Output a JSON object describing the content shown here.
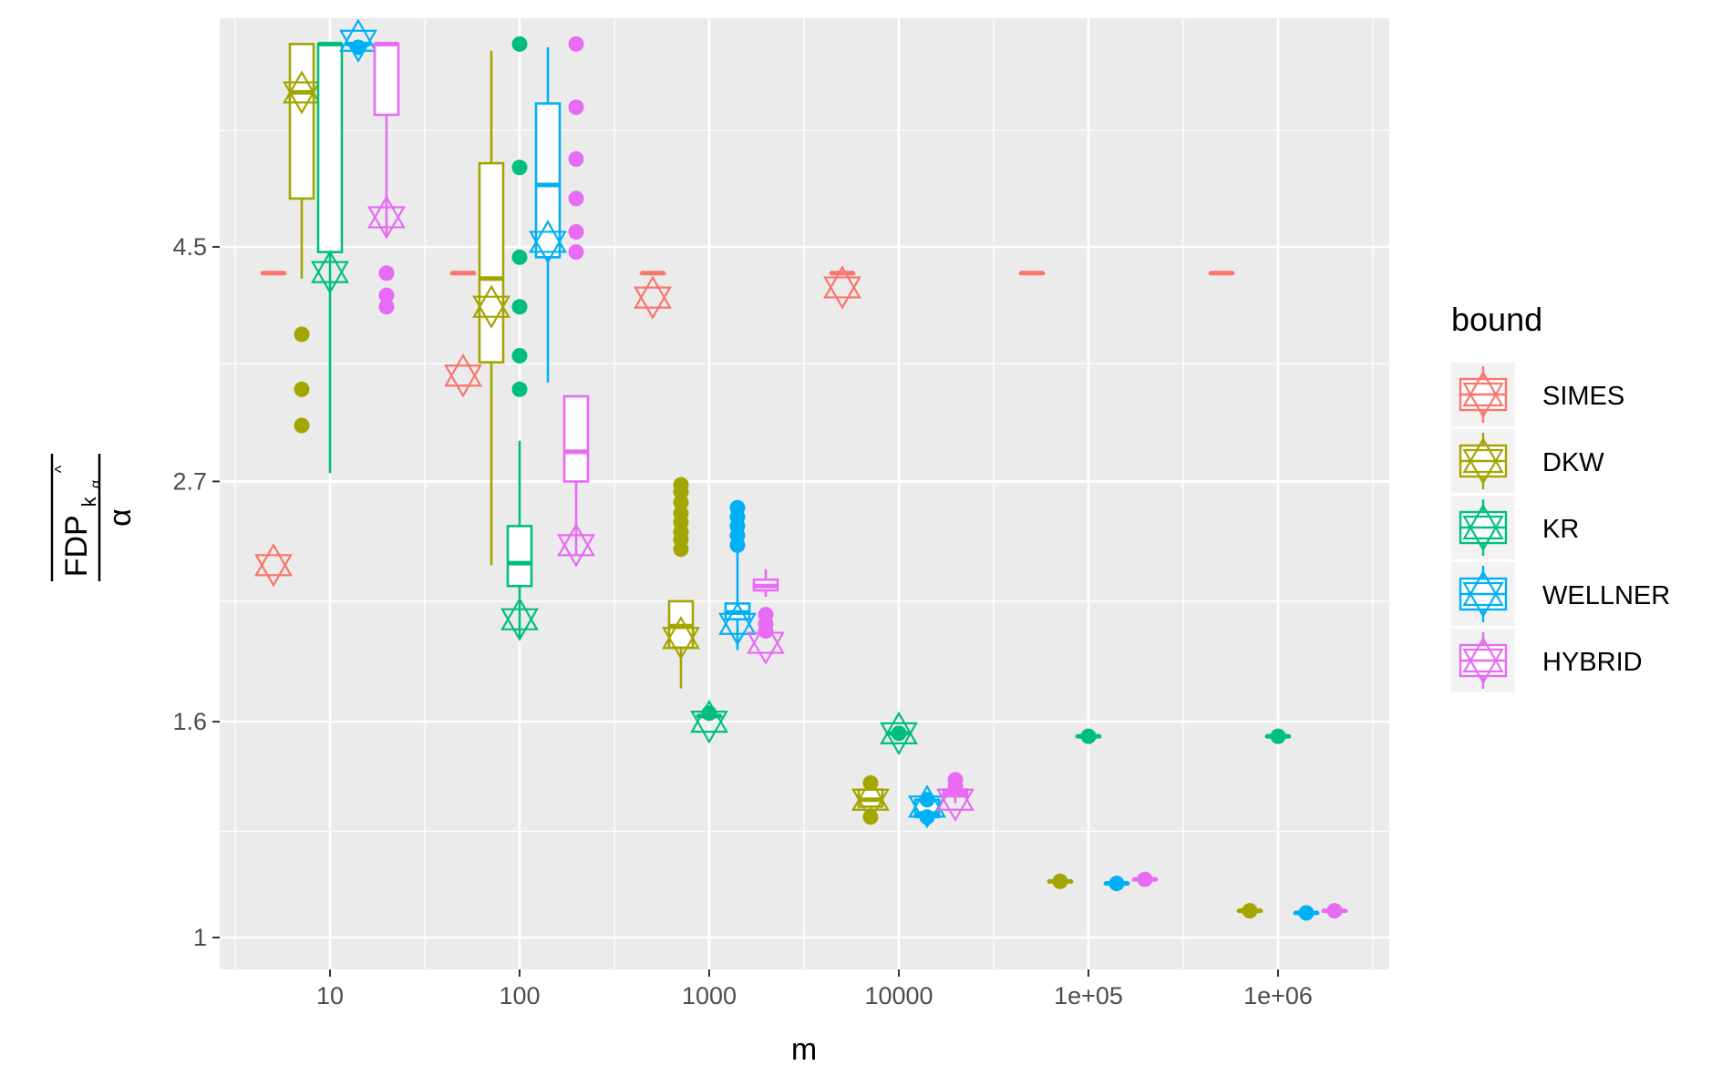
{
  "chart_data": {
    "type": "boxplot",
    "xlabel": "m",
    "ylabel_main": "FDP",
    "ylabel_sub": "k",
    "ylabel_subsub": "α",
    "ylabel_hat": "^",
    "ylabel_denominator": "α",
    "x_scale": "log10 (dodged by bound)",
    "y_scale": "log",
    "ylim": [
      0.93,
      7.8
    ],
    "x_ticks": [
      {
        "value": 10,
        "label": "10"
      },
      {
        "value": 100,
        "label": "100"
      },
      {
        "value": 1000,
        "label": "1000"
      },
      {
        "value": 10000,
        "label": "10000"
      },
      {
        "value": 100000,
        "label": "1e+05"
      },
      {
        "value": 1000000,
        "label": "1e+06"
      }
    ],
    "y_ticks": [
      {
        "value": 1,
        "label": "1"
      },
      {
        "value": 1.6,
        "label": "1.6"
      },
      {
        "value": 2.7,
        "label": "2.7"
      },
      {
        "value": 4.5,
        "label": "4.5"
      }
    ],
    "y_minor": [
      1.26,
      2.08,
      3.49,
      5.8
    ],
    "legend": {
      "title": "bound",
      "position": "right",
      "entries": [
        {
          "name": "SIMES",
          "color": "#F8766D"
        },
        {
          "name": "DKW",
          "color": "#A3A500"
        },
        {
          "name": "KR",
          "color": "#00BF7D"
        },
        {
          "name": "WELLNER",
          "color": "#00B0F6"
        },
        {
          "name": "HYBRID",
          "color": "#E76BF3"
        }
      ]
    },
    "series": [
      {
        "name": "SIMES",
        "color": "#F8766D",
        "groups": [
          {
            "m": 10,
            "box": [
              4.25,
              4.25,
              4.25,
              4.25,
              4.25
            ],
            "mean": 2.25,
            "outliers": []
          },
          {
            "m": 100,
            "box": [
              4.25,
              4.25,
              4.25,
              4.25,
              4.25
            ],
            "mean": 3.4,
            "outliers": []
          },
          {
            "m": 1000,
            "box": [
              4.25,
              4.25,
              4.25,
              4.25,
              4.25
            ],
            "mean": 4.03,
            "outliers": []
          },
          {
            "m": 10000,
            "box": [
              4.25,
              4.25,
              4.25,
              4.25,
              4.25
            ],
            "mean": 4.12,
            "outliers": []
          },
          {
            "m": 100000,
            "box": [
              4.25,
              4.25,
              4.25,
              4.25,
              4.25
            ],
            "mean": null,
            "outliers": []
          },
          {
            "m": 1000000,
            "box": [
              4.25,
              4.25,
              4.25,
              4.25,
              4.25
            ],
            "mean": null,
            "outliers": []
          }
        ]
      },
      {
        "name": "DKW",
        "color": "#A3A500",
        "groups": [
          {
            "m": 10,
            "box": [
              4.2,
              5.0,
              6.3,
              7.0,
              7.0
            ],
            "mean": 6.3,
            "outliers": [
              3.72,
              3.3,
              3.05
            ]
          },
          {
            "m": 100,
            "box": [
              2.25,
              3.5,
              4.2,
              5.4,
              6.9
            ],
            "mean": 3.95,
            "outliers": []
          },
          {
            "m": 1000,
            "box": [
              1.72,
              1.88,
              1.97,
              2.08,
              2.08
            ],
            "mean": 1.92,
            "outliers": [
              2.68,
              2.64,
              2.58,
              2.52,
              2.47,
              2.42,
              2.38,
              2.33
            ]
          },
          {
            "m": 10000,
            "box": [
              1.3,
              1.33,
              1.35,
              1.38,
              1.4
            ],
            "mean": 1.35,
            "outliers": [
              1.4,
              1.3
            ]
          },
          {
            "m": 100000,
            "box": [
              1.13,
              1.13,
              1.13,
              1.13,
              1.13
            ],
            "mean": null,
            "outliers": [
              1.13
            ]
          },
          {
            "m": 1000000,
            "box": [
              1.06,
              1.06,
              1.06,
              1.06,
              1.06
            ],
            "mean": null,
            "outliers": [
              1.06
            ]
          }
        ]
      },
      {
        "name": "KR",
        "color": "#00BF7D",
        "groups": [
          {
            "m": 10,
            "box": [
              2.75,
              4.45,
              7.0,
              7.0,
              7.0
            ],
            "mean": 4.26,
            "outliers": []
          },
          {
            "m": 100,
            "box": [
              1.92,
              2.15,
              2.26,
              2.45,
              2.95
            ],
            "mean": 2.0,
            "outliers": [
              7.0,
              5.35,
              4.4,
              3.95,
              3.55,
              3.3
            ]
          },
          {
            "m": 1000,
            "box": [
              1.62,
              1.62,
              1.62,
              1.62,
              1.62
            ],
            "mean": 1.6,
            "outliers": [
              1.63
            ]
          },
          {
            "m": 10000,
            "box": [
              1.56,
              1.56,
              1.56,
              1.56,
              1.56
            ],
            "mean": 1.56,
            "outliers": [
              1.56
            ]
          },
          {
            "m": 100000,
            "box": [
              1.55,
              1.55,
              1.55,
              1.55,
              1.55
            ],
            "mean": null,
            "outliers": [
              1.55
            ]
          },
          {
            "m": 1000000,
            "box": [
              1.55,
              1.55,
              1.55,
              1.55,
              1.55
            ],
            "mean": null,
            "outliers": [
              1.55
            ]
          }
        ]
      },
      {
        "name": "WELLNER",
        "color": "#00B0F6",
        "groups": [
          {
            "m": 10,
            "box": [
              7.0,
              7.0,
              7.0,
              7.0,
              7.0
            ],
            "mean": 7.05,
            "outliers": [
              6.95
            ]
          },
          {
            "m": 100,
            "box": [
              3.35,
              4.4,
              5.15,
              6.15,
              6.95
            ],
            "mean": 4.55,
            "outliers": []
          },
          {
            "m": 1000,
            "box": [
              1.87,
              2.0,
              2.03,
              2.07,
              2.33
            ],
            "mean": 1.98,
            "outliers": [
              2.55,
              2.5,
              2.45,
              2.4,
              2.35
            ]
          },
          {
            "m": 10000,
            "box": [
              1.3,
              1.3,
              1.31,
              1.35,
              1.35
            ],
            "mean": 1.33,
            "outliers": [
              1.35,
              1.3
            ]
          },
          {
            "m": 100000,
            "box": [
              1.125,
              1.125,
              1.125,
              1.125,
              1.125
            ],
            "mean": null,
            "outliers": [
              1.125
            ]
          },
          {
            "m": 1000000,
            "box": [
              1.055,
              1.055,
              1.055,
              1.055,
              1.055
            ],
            "mean": null,
            "outliers": [
              1.055
            ]
          }
        ]
      },
      {
        "name": "HYBRID",
        "color": "#E76BF3",
        "groups": [
          {
            "m": 10,
            "box": [
              4.6,
              6.0,
              7.0,
              7.0,
              7.0
            ],
            "mean": 4.8,
            "outliers": [
              4.25,
              4.05,
              3.95
            ]
          },
          {
            "m": 100,
            "box": [
              2.3,
              2.7,
              2.88,
              3.25,
              3.25
            ],
            "mean": 2.35,
            "outliers": [
              7.0,
              6.1,
              5.45,
              5.0,
              4.65,
              4.45
            ]
          },
          {
            "m": 1000,
            "box": [
              2.1,
              2.13,
              2.15,
              2.18,
              2.23
            ],
            "mean": 1.9,
            "outliers": [
              2.02,
              1.98,
              1.95
            ]
          },
          {
            "m": 10000,
            "box": [
              1.34,
              1.36,
              1.37,
              1.38,
              1.39
            ],
            "mean": 1.35,
            "outliers": [
              1.41,
              1.39
            ]
          },
          {
            "m": 100000,
            "box": [
              1.135,
              1.135,
              1.135,
              1.135,
              1.135
            ],
            "mean": null,
            "outliers": [
              1.135
            ]
          },
          {
            "m": 1000000,
            "box": [
              1.06,
              1.06,
              1.06,
              1.06,
              1.06
            ],
            "mean": null,
            "outliers": [
              1.06
            ]
          }
        ]
      }
    ]
  }
}
